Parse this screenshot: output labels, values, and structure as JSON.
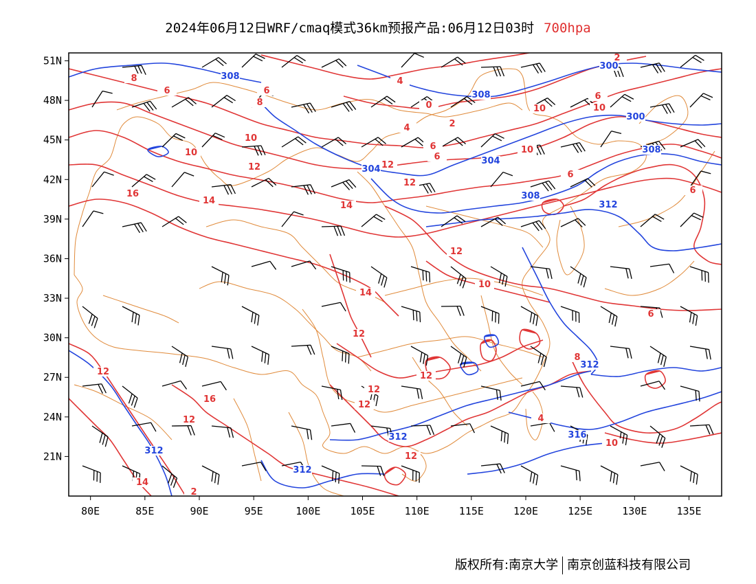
{
  "title": {
    "main": "2024年06月12日WRF/cmaq模式36km预报产品:06月12日03时",
    "level": "700hpa"
  },
  "map": {
    "lon_range": [
      78,
      138
    ],
    "lat_range": [
      18,
      51.6
    ],
    "lon_ticks": [
      "80E",
      "85E",
      "90E",
      "95E",
      "100E",
      "105E",
      "110E",
      "115E",
      "120E",
      "125E",
      "130E",
      "135E"
    ],
    "lat_ticks": [
      "51N",
      "48N",
      "45N",
      "42N",
      "39N",
      "36N",
      "33N",
      "30N",
      "27N",
      "24N",
      "21N"
    ],
    "colors": {
      "temperature": "#e03535",
      "geopotential": "#2244dd",
      "border": "#e08a3a",
      "wind": "#000000"
    },
    "temperature_labels": [
      "8",
      "6",
      "6",
      "8",
      "10",
      "10",
      "12",
      "14",
      "16",
      "14",
      "12",
      "14",
      "12",
      "12",
      "12",
      "12",
      "12",
      "12",
      "16",
      "12",
      "14",
      "6",
      "12",
      "4",
      "2",
      "0",
      "2",
      "4",
      "6",
      "6",
      "10",
      "6",
      "10",
      "12",
      "10",
      "6",
      "6",
      "8",
      "2",
      "10",
      "4",
      "10"
    ],
    "height_labels": [
      "308",
      "308",
      "300",
      "300",
      "304",
      "304",
      "308",
      "308",
      "312",
      "312",
      "312",
      "312",
      "312",
      "316"
    ]
  },
  "footer": {
    "left": "版权所有:南京大学",
    "right": "南京创蓝科技有限公司"
  }
}
